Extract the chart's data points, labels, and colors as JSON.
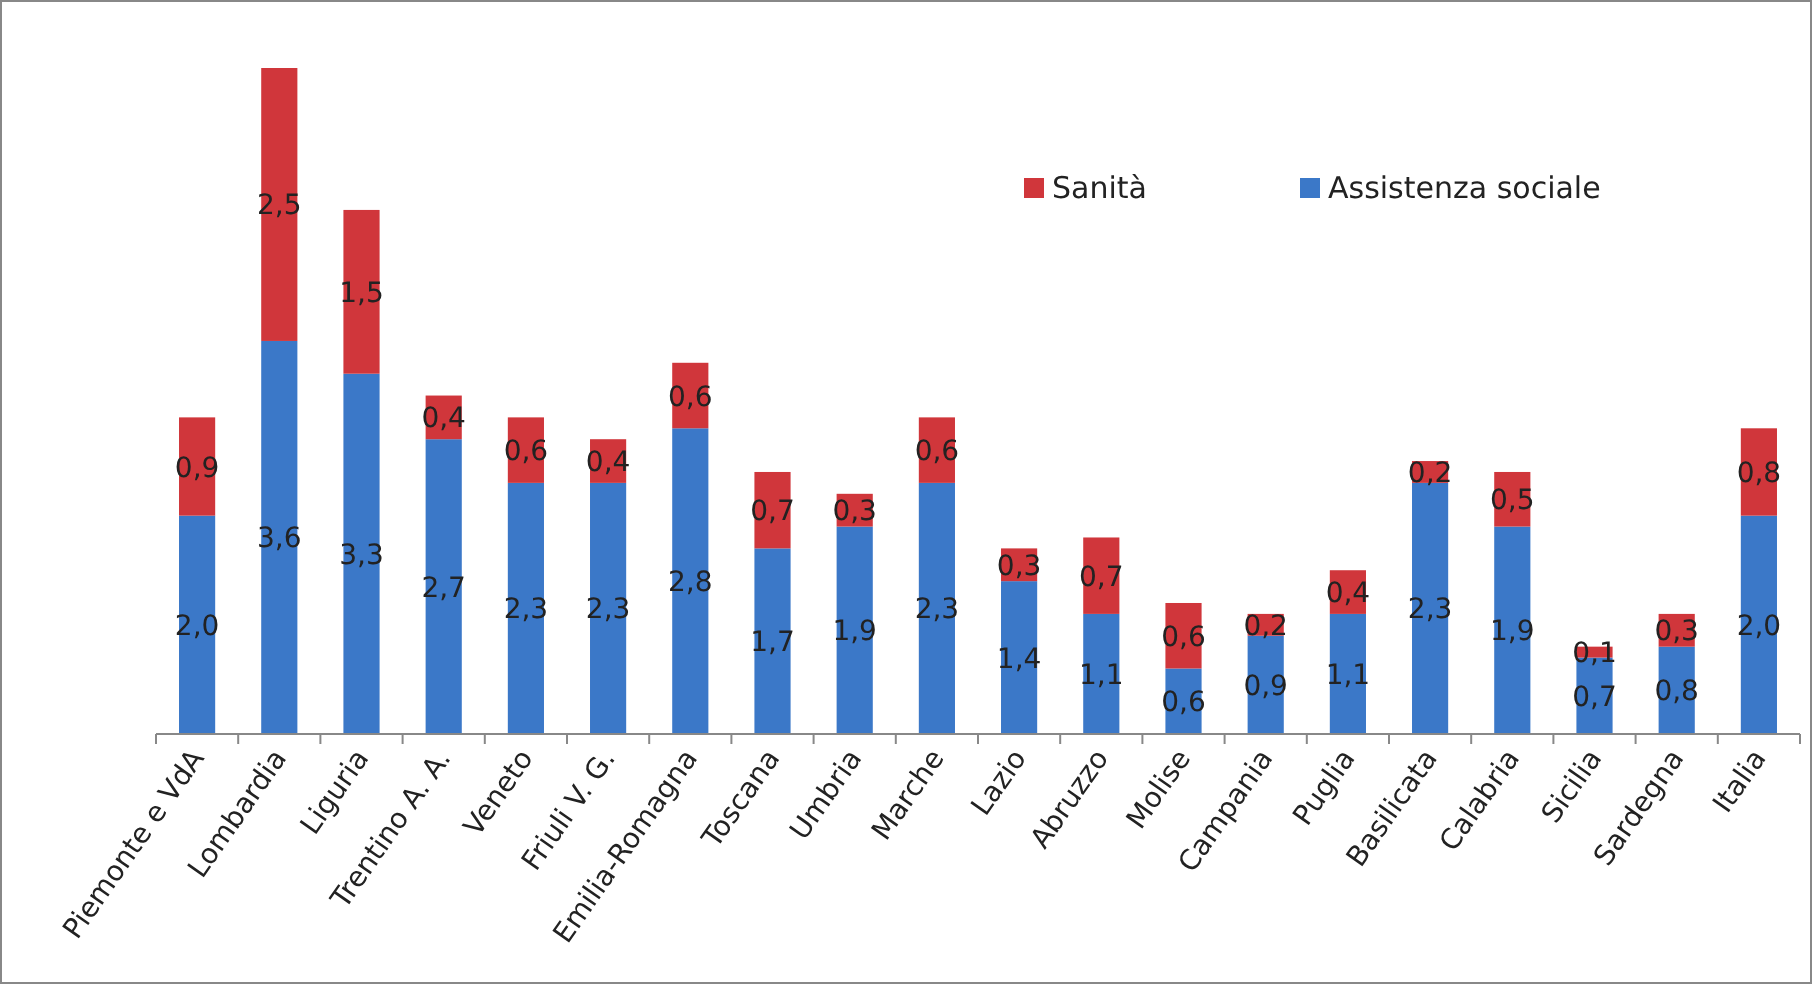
{
  "chart_data": {
    "type": "bar",
    "stacked": true,
    "legend": "top right",
    "categories": [
      "Piemonte e VdA",
      "Lombardia",
      "Liguria",
      "Trentino A. A.",
      "Veneto",
      "Friuli V. G.",
      "Emilia-Romagna",
      "Toscana",
      "Umbria",
      "Marche",
      "Lazio",
      "Abruzzo",
      "Molise",
      "Campania",
      "Puglia",
      "Basilicata",
      "Calabria",
      "Sicilia",
      "Sardegna",
      "Italia"
    ],
    "series": [
      {
        "name": "Assistenza sociale",
        "color": "#3b78c8",
        "values": [
          2.0,
          3.6,
          3.3,
          2.7,
          2.3,
          2.3,
          2.8,
          1.7,
          1.9,
          2.3,
          1.4,
          1.1,
          0.6,
          0.9,
          1.1,
          2.3,
          1.9,
          0.7,
          0.8,
          2.0
        ],
        "value_labels": [
          "2,0",
          "3,6",
          "3,3",
          "2,7",
          "2,3",
          "2,3",
          "2,8",
          "1,7",
          "1,9",
          "2,3",
          "1,4",
          "1,1",
          "0,6",
          "0,9",
          "1,1",
          "2,3",
          "1,9",
          "0,7",
          "0,8",
          "2,0"
        ]
      },
      {
        "name": "Sanità",
        "color": "#d0363b",
        "values": [
          0.9,
          2.5,
          1.5,
          0.4,
          0.6,
          0.4,
          0.6,
          0.7,
          0.3,
          0.6,
          0.3,
          0.7,
          0.6,
          0.2,
          0.4,
          0.2,
          0.5,
          0.1,
          0.3,
          0.8
        ],
        "value_labels": [
          "0,9",
          "2,5",
          "1,5",
          "0,4",
          "0,6",
          "0,4",
          "0,6",
          "0,7",
          "0,3",
          "0,6",
          "0,3",
          "0,7",
          "0,6",
          "0,2",
          "0,4",
          "0,2",
          "0,5",
          "0,1",
          "0,3",
          "0,8"
        ]
      }
    ]
  }
}
